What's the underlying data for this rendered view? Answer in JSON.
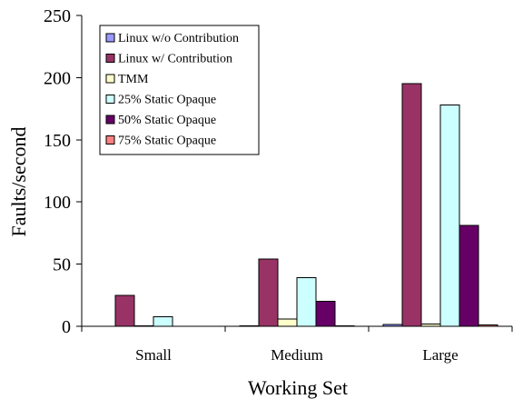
{
  "chart_data": {
    "type": "bar",
    "title": "",
    "xlabel": "Working Set",
    "ylabel": "Faults/second",
    "categories": [
      "Small",
      "Medium",
      "Large"
    ],
    "ylim": [
      0,
      250
    ],
    "yticks": [
      "0",
      "50",
      "100",
      "150",
      "200",
      "250"
    ],
    "grid": false,
    "legend_position": "top-left",
    "series": [
      {
        "name": "Linux w/o Contribution",
        "color": "#9999ff",
        "values": [
          0,
          0.5,
          1.5
        ]
      },
      {
        "name": "Linux w/ Contribution",
        "color": "#993366",
        "values": [
          25,
          54,
          195
        ]
      },
      {
        "name": "TMM",
        "color": "#ffffcc",
        "values": [
          0.5,
          6,
          2
        ]
      },
      {
        "name": "25% Static Opaque",
        "color": "#ccffff",
        "values": [
          7.5,
          39,
          178
        ]
      },
      {
        "name": "50% Static Opaque",
        "color": "#660066",
        "values": [
          0,
          20,
          81
        ]
      },
      {
        "name": "75% Static Opaque",
        "color": "#ff8080",
        "values": [
          0,
          0.5,
          1
        ]
      }
    ]
  }
}
